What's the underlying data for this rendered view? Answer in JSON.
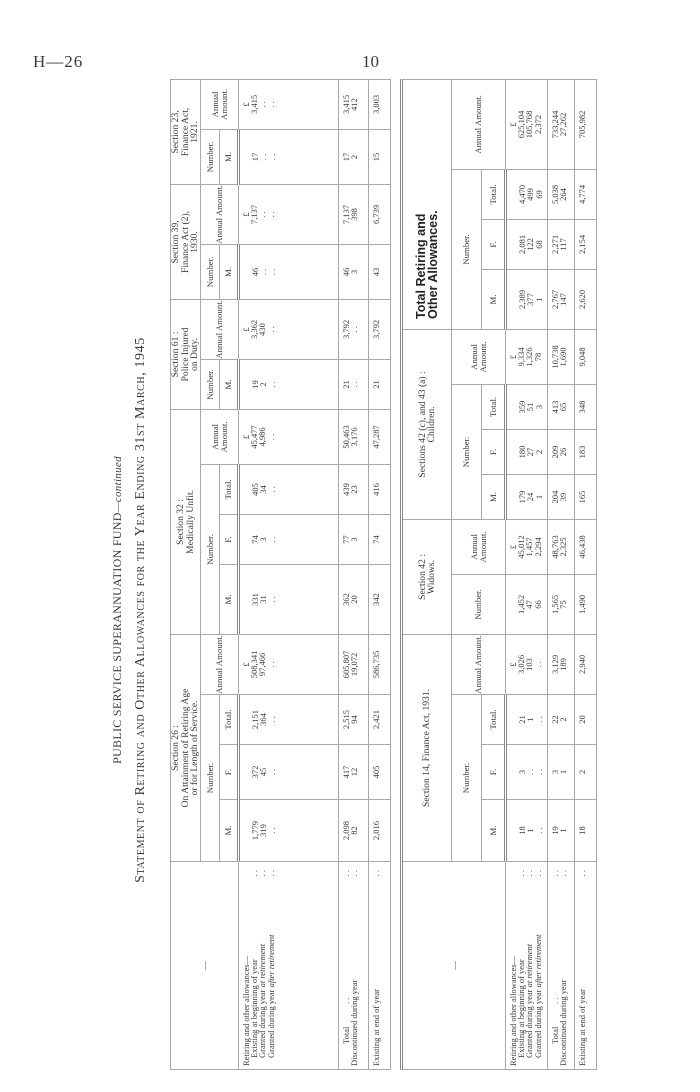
{
  "page": {
    "ref": "H—26",
    "number": "10"
  },
  "title": {
    "line1": "PUBLIC SERVICE SUPERANNUATION FUND",
    "line1_suffix": "—continued",
    "line2": "Statement of Retiring and Other Allowances for the Year Ending 31st March, 1945"
  },
  "labels": {
    "corner": "—",
    "heading": "Retiring and other allowances—",
    "rows": [
      {
        "text": "Existing at beginning of year",
        "em": ""
      },
      {
        "text": "Granted during year",
        "em": "at retirement"
      },
      {
        "text": "Granted during year",
        "em": "after retirement"
      }
    ],
    "total": "Total",
    "discontinued": "Discontinued during year",
    "end": "Existing at end of year",
    "leader": ". ."
  },
  "upper": {
    "sections": [
      {
        "title": [
          "Section 26 :",
          "On Attainment of Retiring Age",
          "or for Length of Service."
        ],
        "number": {
          "label": "Number.",
          "columns": [
            {
              "head": "M.",
              "values": [
                "1,779",
                "319",
                ". .",
                "2,098",
                "82",
                "2,016"
              ]
            },
            {
              "head": "F.",
              "values": [
                "372",
                "45",
                ". .",
                "417",
                "12",
                "405"
              ]
            },
            {
              "head": "Total.",
              "values": [
                "2,151",
                "364",
                ". .",
                "2,515",
                "94",
                "2,421"
              ]
            }
          ]
        },
        "annual": {
          "head": "Annual Amount.",
          "currency": "£",
          "values": [
            "508,341",
            "97,466",
            ". .",
            "605,807",
            "19,072",
            "586,735"
          ]
        }
      },
      {
        "title": [
          "Section 32 :",
          "Medically Unfit."
        ],
        "number": {
          "label": "Number.",
          "columns": [
            {
              "head": "M.",
              "values": [
                "331",
                "31",
                ". .",
                "362",
                "20",
                "342"
              ]
            },
            {
              "head": "F.",
              "values": [
                "74",
                "3",
                ". .",
                "77",
                "3",
                "74"
              ]
            },
            {
              "head": "Total.",
              "values": [
                "405",
                "34",
                ". .",
                "439",
                "23",
                "416"
              ]
            }
          ]
        },
        "annual": {
          "head": "Annual Amount.",
          "currency": "£",
          "values": [
            "45,477",
            "4,986",
            ". .",
            "50,463",
            "3,176",
            "47,287"
          ]
        }
      },
      {
        "title": [
          "Section 61 :",
          "Police Injured",
          "on Duty."
        ],
        "number": {
          "label": "Number.",
          "columns": [
            {
              "head": "M.",
              "values": [
                "19",
                "2",
                ". .",
                "21",
                ". .",
                "21"
              ]
            }
          ]
        },
        "annual": {
          "head": "Annual Amount.",
          "currency": "£",
          "values": [
            "3,362",
            "430",
            ". .",
            "3,792",
            ". .",
            "3,792"
          ]
        }
      },
      {
        "title": [
          "Section 39,",
          "Finance Act (2),",
          "1930."
        ],
        "number": {
          "label": "Number.",
          "columns": [
            {
              "head": "M.",
              "values": [
                "46",
                ". .",
                ". .",
                "46",
                "3",
                "43"
              ]
            }
          ]
        },
        "annual": {
          "head": "Annual Amount.",
          "currency": "£",
          "values": [
            "7,137",
            ". .",
            ". .",
            "7,137",
            "398",
            "6,739"
          ]
        }
      },
      {
        "title": [
          "Section 23,",
          "Finance Act,",
          "1921."
        ],
        "number": {
          "label": "Number.",
          "columns": [
            {
              "head": "M.",
              "values": [
                "17",
                ". .",
                ". .",
                "17",
                "2",
                "15"
              ]
            }
          ]
        },
        "annual": {
          "head": "Annual Amount.",
          "currency": "£",
          "values": [
            "3,415",
            ". .",
            ". .",
            "3,415",
            "412",
            "3,003"
          ]
        }
      }
    ]
  },
  "lower": {
    "sections": [
      {
        "title": [
          "Section 14, Finance Act, 1931."
        ],
        "number": {
          "label": "Number.",
          "columns": [
            {
              "head": "M.",
              "values": [
                "18",
                "1",
                ". .",
                "19",
                "1",
                "18"
              ]
            },
            {
              "head": "F.",
              "values": [
                "3",
                ". .",
                ". .",
                "3",
                "1",
                "2"
              ]
            },
            {
              "head": "Total.",
              "values": [
                "21",
                "1",
                ". .",
                "22",
                "2",
                "20"
              ]
            }
          ]
        },
        "annual": {
          "head": "Annual Amount.",
          "currency": "£",
          "values": [
            "3,026",
            "103",
            ". .",
            "3,129",
            "189",
            "2,940"
          ]
        }
      },
      {
        "title": [
          "Section 42 :",
          "Widows."
        ],
        "number": {
          "label": "Number.",
          "values": [
            "1,452",
            "47",
            "66",
            "1,565",
            "75",
            "1,490"
          ]
        },
        "annual": {
          "head": "Annual Amount.",
          "currency": "£",
          "values": [
            "45,012",
            "1,457",
            "2,294",
            "48,763",
            "2,325",
            "46,438"
          ]
        }
      },
      {
        "title": [
          "Sections 42 (c), and 43 (a) :",
          "Children."
        ],
        "number": {
          "label": "Number.",
          "columns": [
            {
              "head": "M.",
              "values": [
                "179",
                "24",
                "1",
                "204",
                "39",
                "165"
              ]
            },
            {
              "head": "F.",
              "values": [
                "180",
                "27",
                "2",
                "209",
                "26",
                "183"
              ]
            },
            {
              "head": "Total.",
              "values": [
                "359",
                "51",
                "3",
                "413",
                "65",
                "348"
              ]
            }
          ]
        },
        "annual": {
          "head": "Annual Amount.",
          "currency": "£",
          "values": [
            "9,334",
            "1,326",
            "78",
            "10,738",
            "1,690",
            "9,048"
          ]
        }
      },
      {
        "title": [
          "Total Retiring and",
          "Other Allowances."
        ],
        "number": {
          "label": "Number.",
          "columns": [
            {
              "head": "M.",
              "values": [
                "2,389",
                "377",
                "1",
                "2,767",
                "147",
                "2,620"
              ]
            },
            {
              "head": "F.",
              "values": [
                "2,081",
                "122",
                "68",
                "2,271",
                "117",
                "2,154"
              ]
            },
            {
              "head": "Total.",
              "values": [
                "4,470",
                "499",
                "69",
                "5,038",
                "264",
                "4,774"
              ]
            }
          ]
        },
        "annual": {
          "head": "Annual Amount.",
          "currency": "£",
          "values": [
            "625,104",
            "105,768",
            "2,372",
            "733,244",
            "27,262",
            "705,982"
          ]
        }
      }
    ]
  }
}
